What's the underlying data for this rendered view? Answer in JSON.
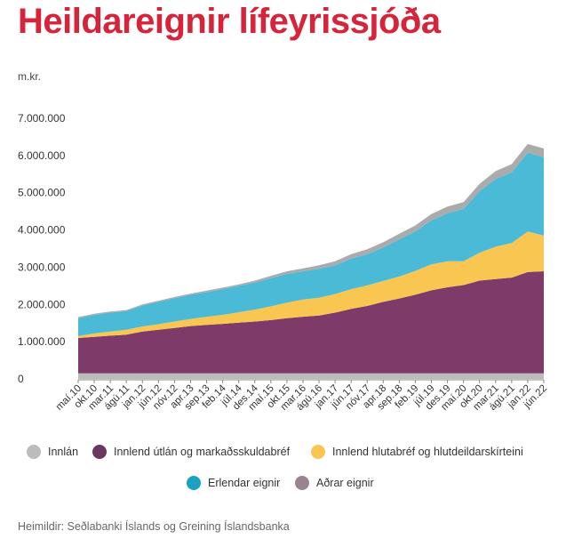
{
  "title": "Heildareignir lífeyrissjóða",
  "source": "Heimildir: Seðlabanki Íslands og Greining Íslandsbanka",
  "chart_data": {
    "type": "area",
    "stacked": true,
    "unit_label": "m.kr.",
    "ylim": [
      0,
      7000000
    ],
    "y_ticks": [
      0,
      1000000,
      2000000,
      3000000,
      4000000,
      5000000,
      6000000,
      7000000
    ],
    "y_tick_labels": [
      "0",
      "1.000.000",
      "2.000.000",
      "3.000.000",
      "4.000.000",
      "5.000.000",
      "6.000.000",
      "7.000.000"
    ],
    "x_tick_labels": [
      "maí.10",
      "okt.10",
      "mar.11",
      "ágú.11",
      "jan.12",
      "jún.12",
      "nóv.12",
      "apr.13",
      "sep.13",
      "feb.14",
      "júl.14",
      "des.14",
      "maí.15",
      "okt.15",
      "mar.16",
      "ágú.16",
      "jan.17",
      "jún.17",
      "nóv.17",
      "apr.18",
      "sep.18",
      "feb.19",
      "júl.19",
      "des.19",
      "maí.20",
      "okt.20",
      "mar.21",
      "ágú.21",
      "jan.22",
      "jún.22"
    ],
    "x": [
      "maí.10",
      "okt.10",
      "mar.11",
      "ágú.11",
      "jan.12",
      "jún.12",
      "nóv.12",
      "apr.13",
      "sep.13",
      "feb.14",
      "júl.14",
      "des.14",
      "maí.15",
      "okt.15",
      "mar.16",
      "ágú.16",
      "jan.17",
      "jún.17",
      "nóv.17",
      "apr.18",
      "sep.18",
      "feb.19",
      "júl.19",
      "des.19",
      "maí.20",
      "okt.20",
      "mar.21",
      "ágú.21",
      "jan.22",
      "jún.22"
    ],
    "series": [
      {
        "name": "Innlán",
        "color": "#bcbcbc",
        "values": [
          150000,
          150000,
          150000,
          150000,
          150000,
          150000,
          150000,
          150000,
          150000,
          150000,
          150000,
          150000,
          150000,
          150000,
          150000,
          150000,
          150000,
          150000,
          150000,
          150000,
          150000,
          150000,
          150000,
          150000,
          150000,
          150000,
          150000,
          150000,
          150000,
          150000
        ]
      },
      {
        "name": "Innlend útlán og markaðsskuldabréf",
        "color": "#7e3a68",
        "values": [
          950000,
          980000,
          1010000,
          1040000,
          1120000,
          1170000,
          1220000,
          1270000,
          1300000,
          1330000,
          1360000,
          1390000,
          1430000,
          1480000,
          1520000,
          1550000,
          1630000,
          1730000,
          1810000,
          1920000,
          2010000,
          2110000,
          2230000,
          2310000,
          2370000,
          2490000,
          2530000,
          2570000,
          2720000,
          2740000
        ]
      },
      {
        "name": "Innlend hlutabréf og hlutdeildarskírteini",
        "color": "#f9c652",
        "values": [
          50000,
          90000,
          110000,
          130000,
          140000,
          150000,
          170000,
          190000,
          220000,
          240000,
          280000,
          320000,
          370000,
          420000,
          460000,
          480000,
          500000,
          530000,
          550000,
          560000,
          590000,
          640000,
          700000,
          700000,
          640000,
          750000,
          870000,
          930000,
          1090000,
          960000
        ]
      },
      {
        "name": "Erlendar eignir",
        "color": "#4bbad6",
        "values": [
          480000,
          500000,
          510000,
          500000,
          560000,
          600000,
          630000,
          650000,
          660000,
          690000,
          710000,
          730000,
          760000,
          770000,
          760000,
          780000,
          770000,
          820000,
          840000,
          900000,
          1000000,
          1060000,
          1180000,
          1290000,
          1410000,
          1650000,
          1820000,
          1900000,
          2120000,
          2100000
        ]
      },
      {
        "name": "Aðrar eignir",
        "color": "#ababab",
        "values": [
          30000,
          30000,
          30000,
          30000,
          30000,
          30000,
          30000,
          30000,
          40000,
          40000,
          40000,
          50000,
          60000,
          70000,
          80000,
          90000,
          110000,
          120000,
          130000,
          140000,
          150000,
          160000,
          170000,
          180000,
          180000,
          200000,
          210000,
          220000,
          230000,
          240000
        ]
      }
    ],
    "legend": [
      {
        "label": "Innlán",
        "color": "#bcbcbc"
      },
      {
        "label": "Innlend útlán og markaðsskuldabréf",
        "color": "#6b3761"
      },
      {
        "label": "Innlend hlutabréf og hlutdeildarskírteini",
        "color": "#f9c652"
      },
      {
        "label": "Erlendar eignir",
        "color": "#1aa2c2"
      },
      {
        "label": "Aðrar eignir",
        "color": "#9a8391"
      }
    ],
    "legend_position": "bottom",
    "grid": false
  }
}
